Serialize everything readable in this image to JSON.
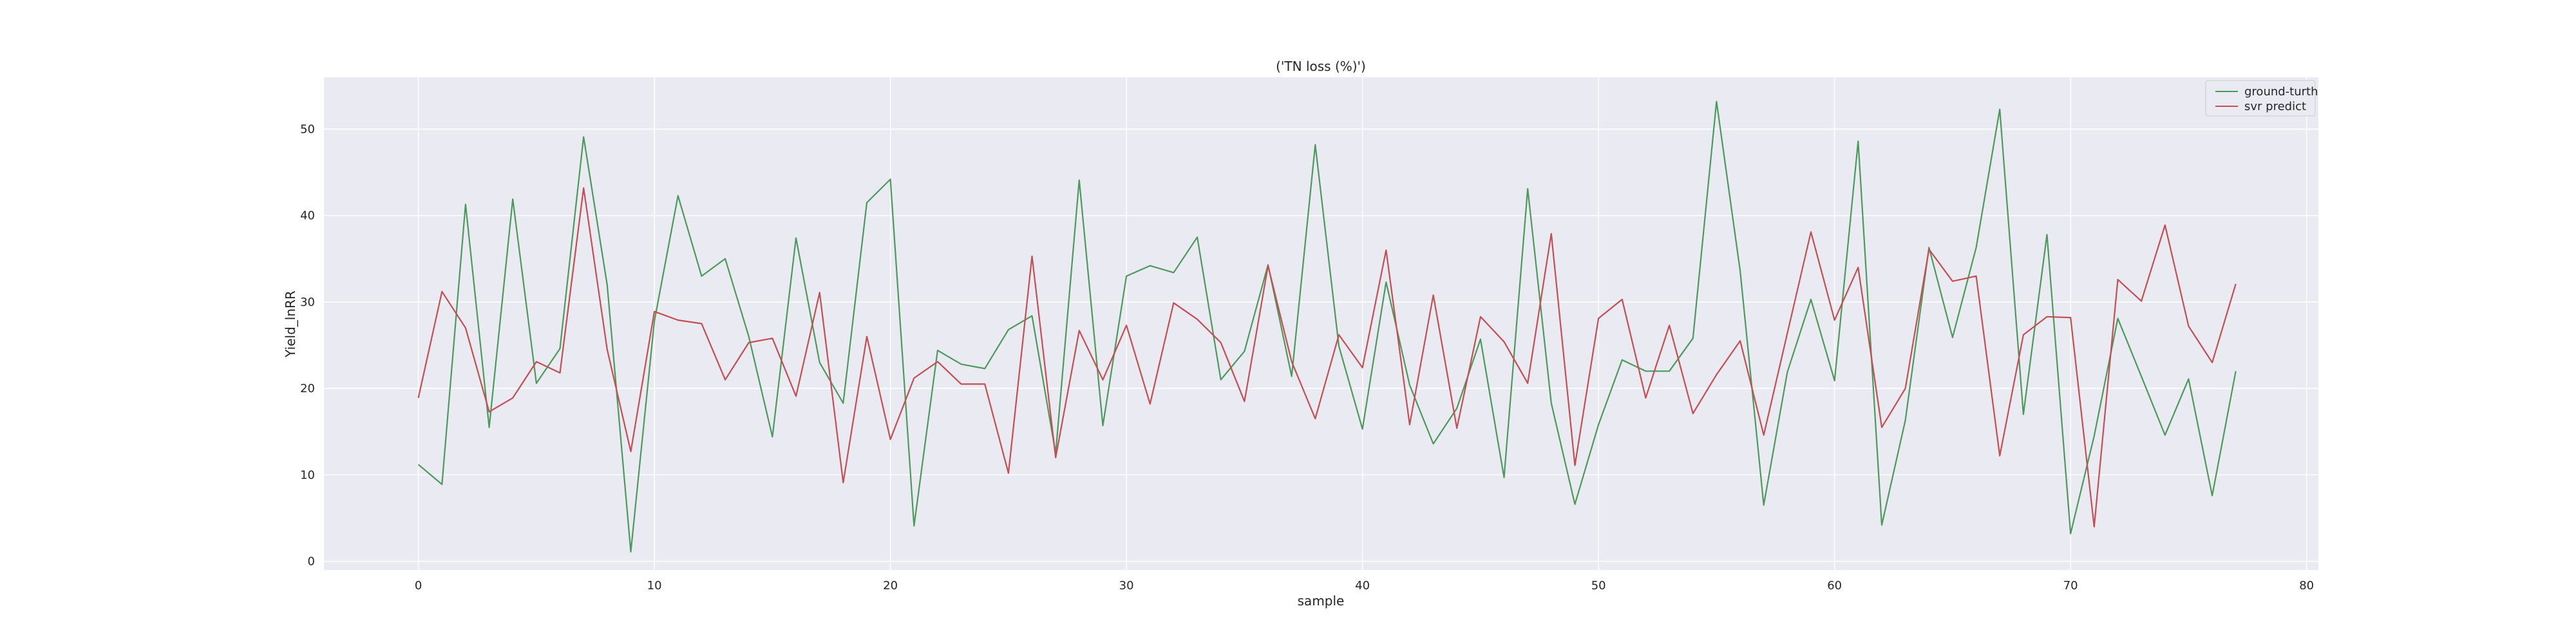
{
  "chart_data": {
    "type": "line",
    "title": "('TN loss (%)')",
    "xlabel": "sample",
    "ylabel": "Yield_lnRR",
    "xlim": [
      -4,
      80.5
    ],
    "ylim": [
      -1,
      56
    ],
    "xticks": [
      0,
      10,
      20,
      30,
      40,
      50,
      60,
      70,
      80
    ],
    "yticks": [
      0,
      10,
      20,
      30,
      40,
      50
    ],
    "grid": true,
    "legend_position": "top-right",
    "series": [
      {
        "name": "ground-turth",
        "color": "#4c9a5b",
        "x": [
          0,
          1,
          2,
          3,
          4,
          5,
          6,
          7,
          8,
          9,
          10,
          11,
          12,
          13,
          14,
          15,
          16,
          17,
          18,
          19,
          20,
          21,
          22,
          23,
          24,
          25,
          26,
          27,
          28,
          29,
          30,
          31,
          32,
          33,
          34,
          35,
          36,
          37,
          38,
          39,
          40,
          41,
          42,
          43,
          44,
          45,
          46,
          47,
          48,
          49,
          50,
          51,
          52,
          53,
          54,
          55,
          56,
          57,
          58,
          59,
          60,
          61,
          62,
          63,
          64,
          65,
          66,
          67,
          68,
          69,
          70,
          71,
          72,
          73,
          74,
          75,
          76,
          77
        ],
        "values": [
          11.2,
          8.9,
          41.3,
          15.5,
          41.9,
          20.6,
          24.6,
          49.1,
          32.0,
          1.1,
          27.8,
          42.3,
          33.0,
          35.0,
          26.0,
          14.4,
          37.4,
          23.0,
          18.3,
          41.5,
          44.2,
          4.1,
          24.4,
          22.8,
          22.3,
          26.8,
          28.4,
          12.5,
          44.1,
          15.7,
          33.0,
          34.2,
          33.4,
          37.5,
          21.0,
          24.3,
          34.3,
          21.4,
          48.2,
          24.9,
          15.3,
          32.3,
          20.4,
          13.6,
          17.7,
          25.7,
          9.7,
          43.1,
          18.3,
          6.6,
          15.8,
          23.3,
          22.0,
          22.0,
          25.8,
          53.2,
          33.6,
          6.5,
          21.9,
          30.3,
          20.9,
          48.6,
          4.2,
          16.3,
          36.3,
          25.9,
          36.3,
          52.3,
          17.0,
          37.8,
          3.2,
          14.5,
          28.1,
          21.4,
          14.6,
          21.1,
          7.6,
          22.0
        ]
      },
      {
        "name": "svr predict",
        "color": "#c44e52",
        "x": [
          0,
          1,
          2,
          3,
          4,
          5,
          6,
          7,
          8,
          9,
          10,
          11,
          12,
          13,
          14,
          15,
          16,
          17,
          18,
          19,
          20,
          21,
          22,
          23,
          24,
          25,
          26,
          27,
          28,
          29,
          30,
          31,
          32,
          33,
          34,
          35,
          36,
          37,
          38,
          39,
          40,
          41,
          42,
          43,
          44,
          45,
          46,
          47,
          48,
          49,
          50,
          51,
          52,
          53,
          54,
          55,
          56,
          57,
          58,
          59,
          60,
          61,
          62,
          63,
          64,
          65,
          66,
          67,
          68,
          69,
          70,
          71,
          72,
          73,
          74,
          75,
          76,
          77
        ],
        "values": [
          18.9,
          31.2,
          27.0,
          17.3,
          18.9,
          23.1,
          21.8,
          43.2,
          24.5,
          12.7,
          28.9,
          27.9,
          27.5,
          21.0,
          25.3,
          25.8,
          19.1,
          31.1,
          9.1,
          26.0,
          14.1,
          21.2,
          23.1,
          20.5,
          20.5,
          10.2,
          35.3,
          12.0,
          26.7,
          21.0,
          27.3,
          18.2,
          29.9,
          28.0,
          25.3,
          18.5,
          34.2,
          23.1,
          16.5,
          26.2,
          22.4,
          36.0,
          15.8,
          30.8,
          15.4,
          28.3,
          25.4,
          20.6,
          37.9,
          11.1,
          28.1,
          30.3,
          18.9,
          27.3,
          17.1,
          21.6,
          25.5,
          14.6,
          26.4,
          38.1,
          27.9,
          34.0,
          15.5,
          20.0,
          36.1,
          32.4,
          33.0,
          12.2,
          26.2,
          28.3,
          28.2,
          4.0,
          32.6,
          30.1,
          38.9,
          27.2,
          23.0,
          32.1
        ]
      }
    ]
  }
}
